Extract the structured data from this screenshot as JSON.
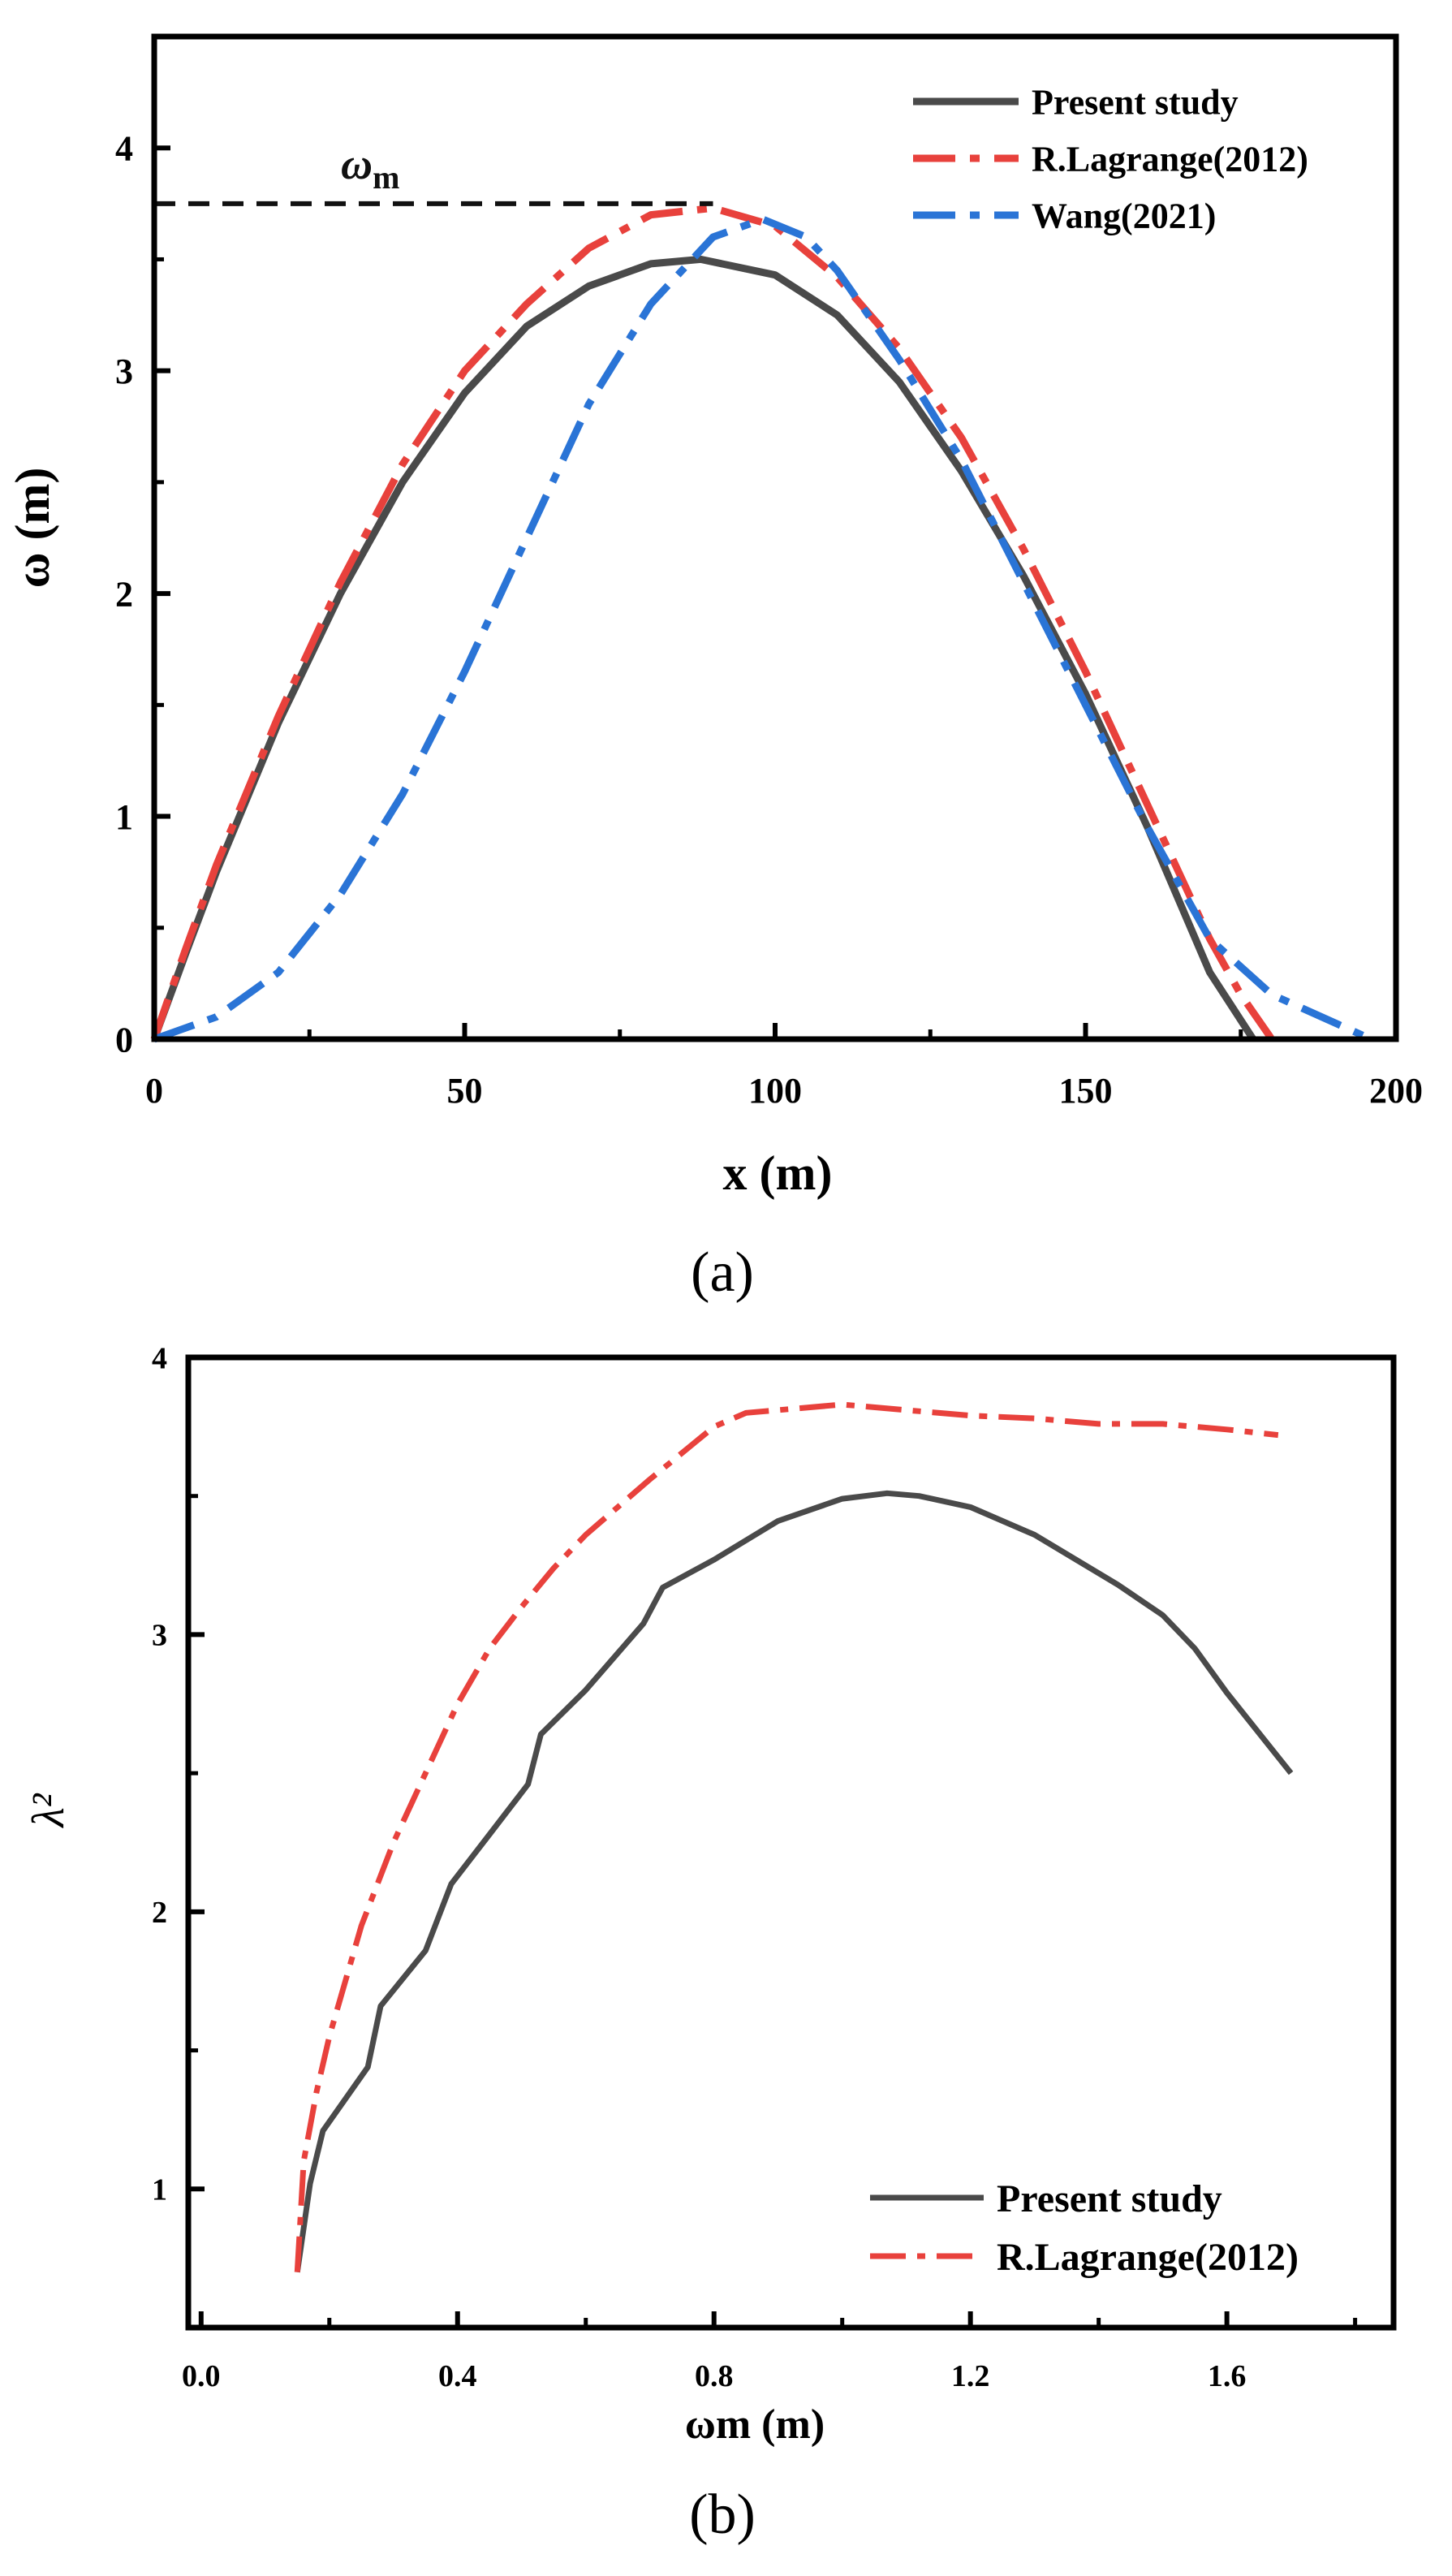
{
  "chart_data": [
    {
      "type": "line",
      "panel_label": "(a)",
      "ylabel": "ω (m)",
      "xlabel": "x (m)",
      "xlim": [
        0,
        200
      ],
      "ylim": [
        0,
        4.5
      ],
      "xticks": [
        "0",
        "50",
        "100",
        "150",
        "200"
      ],
      "xtick_values": [
        0,
        50,
        100,
        150,
        200
      ],
      "yticks": [
        "0",
        "1",
        "2",
        "3",
        "4"
      ],
      "ytick_values": [
        0,
        1,
        2,
        3,
        4
      ],
      "legend_position": "top-right",
      "annotation": {
        "text": "ω",
        "subscript": "m",
        "reference_line": {
          "y": 3.75,
          "x_from": 0,
          "x_to": 90,
          "style": "dashed",
          "color": "#111111"
        }
      },
      "series": [
        {
          "name": "Present study",
          "color": "#4a4a4a",
          "style": "solid",
          "x": [
            0,
            5,
            10,
            20,
            30,
            40,
            50,
            60,
            70,
            80,
            88,
            100,
            110,
            120,
            130,
            140,
            150,
            160,
            170,
            177
          ],
          "y": [
            0,
            0.38,
            0.75,
            1.42,
            2.0,
            2.5,
            2.9,
            3.2,
            3.38,
            3.48,
            3.5,
            3.43,
            3.25,
            2.95,
            2.55,
            2.08,
            1.55,
            0.95,
            0.3,
            0
          ]
        },
        {
          "name": "R.Lagrange(2012)",
          "color": "#e8413c",
          "style": "dashdot",
          "x": [
            0,
            5,
            10,
            20,
            30,
            40,
            50,
            60,
            70,
            80,
            90,
            100,
            110,
            120,
            130,
            140,
            150,
            160,
            170,
            175,
            180
          ],
          "y": [
            0,
            0.4,
            0.78,
            1.45,
            2.05,
            2.58,
            3.0,
            3.3,
            3.55,
            3.7,
            3.73,
            3.65,
            3.42,
            3.1,
            2.7,
            2.2,
            1.65,
            1.05,
            0.45,
            0.2,
            0
          ]
        },
        {
          "name": "Wang(2021)",
          "color": "#2a74d6",
          "style": "dashdot",
          "x": [
            0,
            10,
            20,
            30,
            40,
            50,
            60,
            70,
            80,
            90,
            98,
            105,
            110,
            120,
            130,
            140,
            150,
            160,
            170,
            180,
            196
          ],
          "y": [
            0,
            0.1,
            0.3,
            0.65,
            1.1,
            1.65,
            2.25,
            2.85,
            3.3,
            3.6,
            3.68,
            3.6,
            3.45,
            3.05,
            2.6,
            2.05,
            1.5,
            0.95,
            0.45,
            0.2,
            0
          ]
        }
      ]
    },
    {
      "type": "line",
      "panel_label": "(b)",
      "ylabel": "λ²",
      "xlabel": "ωm (m)",
      "xlim": [
        -0.02,
        1.86
      ],
      "ylim": [
        0.5,
        4.0
      ],
      "xticks": [
        "0.0",
        "0.4",
        "0.8",
        "1.2",
        "1.6"
      ],
      "xtick_values": [
        0.0,
        0.4,
        0.8,
        1.2,
        1.6
      ],
      "yticks": [
        "1",
        "2",
        "3",
        "4"
      ],
      "ytick_values": [
        1,
        2,
        3,
        4
      ],
      "legend_position": "bottom-right",
      "series": [
        {
          "name": "Present study",
          "color": "#4a4a4a",
          "style": "solid",
          "x": [
            0.15,
            0.17,
            0.19,
            0.26,
            0.28,
            0.35,
            0.39,
            0.45,
            0.51,
            0.53,
            0.6,
            0.69,
            0.72,
            0.8,
            0.9,
            1.0,
            1.07,
            1.12,
            1.2,
            1.3,
            1.43,
            1.5,
            1.55,
            1.6,
            1.7
          ],
          "y": [
            0.7,
            1.02,
            1.21,
            1.44,
            1.66,
            1.86,
            2.1,
            2.28,
            2.46,
            2.64,
            2.8,
            3.04,
            3.17,
            3.27,
            3.41,
            3.49,
            3.51,
            3.5,
            3.46,
            3.36,
            3.18,
            3.07,
            2.95,
            2.79,
            2.5
          ]
        },
        {
          "name": "R.Lagrange(2012)",
          "color": "#e8413c",
          "style": "dashdot",
          "x": [
            0.15,
            0.16,
            0.18,
            0.2,
            0.25,
            0.3,
            0.36,
            0.4,
            0.45,
            0.5,
            0.55,
            0.6,
            0.7,
            0.8,
            0.85,
            0.9,
            1.0,
            1.1,
            1.2,
            1.3,
            1.4,
            1.5,
            1.6,
            1.68
          ],
          "y": [
            0.7,
            1.1,
            1.35,
            1.55,
            1.95,
            2.25,
            2.55,
            2.75,
            2.95,
            3.1,
            3.24,
            3.36,
            3.56,
            3.75,
            3.8,
            3.81,
            3.83,
            3.81,
            3.79,
            3.78,
            3.76,
            3.76,
            3.74,
            3.72
          ]
        }
      ]
    }
  ]
}
